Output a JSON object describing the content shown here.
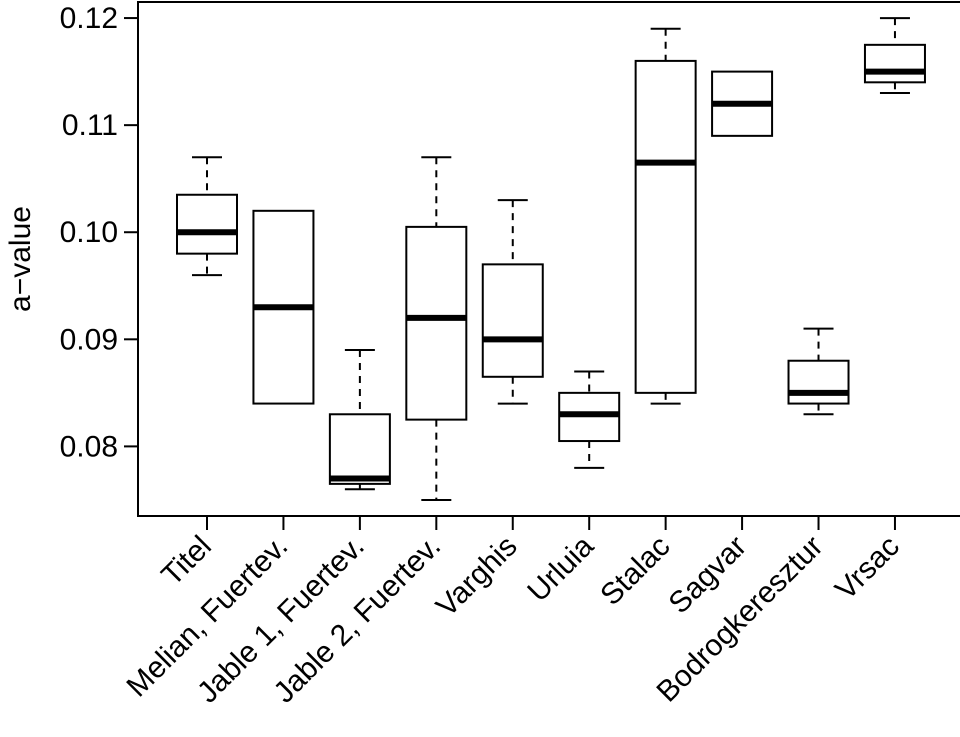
{
  "chart_data": {
    "type": "boxplot",
    "title": "",
    "xlabel": "",
    "ylabel": "a−value",
    "ylim": [
      0.0735,
      0.1215
    ],
    "yticks": [
      0.08,
      0.09,
      0.1,
      0.11,
      0.12
    ],
    "ytick_labels": [
      "0.08",
      "0.09",
      "0.10",
      "0.11",
      "0.12"
    ],
    "grid": false,
    "categories": [
      "Titel",
      "Melian, Fuertev.",
      "Jable 1, Fuertev.",
      "Jable 2, Fuertev.",
      "Varghis",
      "Urluia",
      "Stalac",
      "Sagvar",
      "Bodrogkeresztur",
      "Vrsac"
    ],
    "boxes": [
      {
        "whisker_low": 0.096,
        "q1": 0.098,
        "median": 0.1,
        "q3": 0.1035,
        "whisker_high": 0.107
      },
      {
        "whisker_low": 0.084,
        "q1": 0.084,
        "median": 0.093,
        "q3": 0.102,
        "whisker_high": 0.102
      },
      {
        "whisker_low": 0.076,
        "q1": 0.0765,
        "median": 0.077,
        "q3": 0.083,
        "whisker_high": 0.089
      },
      {
        "whisker_low": 0.075,
        "q1": 0.0825,
        "median": 0.092,
        "q3": 0.1005,
        "whisker_high": 0.107
      },
      {
        "whisker_low": 0.084,
        "q1": 0.0865,
        "median": 0.09,
        "q3": 0.097,
        "whisker_high": 0.103
      },
      {
        "whisker_low": 0.078,
        "q1": 0.0805,
        "median": 0.083,
        "q3": 0.085,
        "whisker_high": 0.087
      },
      {
        "whisker_low": 0.084,
        "q1": 0.085,
        "median": 0.1065,
        "q3": 0.116,
        "whisker_high": 0.119
      },
      {
        "whisker_low": 0.109,
        "q1": 0.109,
        "median": 0.112,
        "q3": 0.115,
        "whisker_high": 0.115
      },
      {
        "whisker_low": 0.083,
        "q1": 0.084,
        "median": 0.085,
        "q3": 0.088,
        "whisker_high": 0.091
      },
      {
        "whisker_low": 0.113,
        "q1": 0.114,
        "median": 0.115,
        "q3": 0.1175,
        "whisker_high": 0.12
      }
    ]
  }
}
